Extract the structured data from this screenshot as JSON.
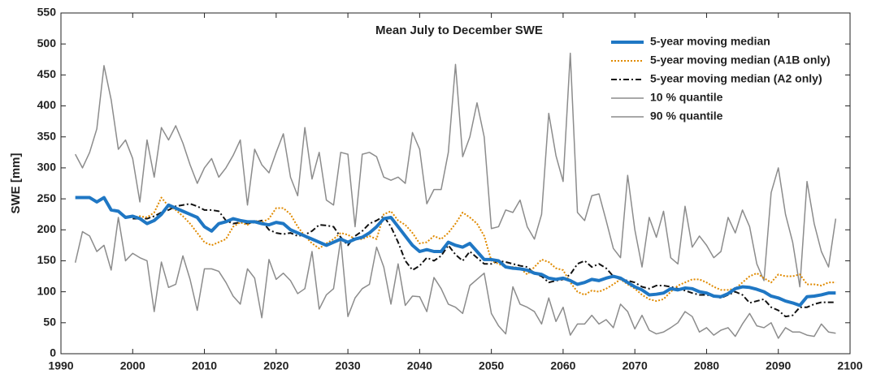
{
  "chart_data": {
    "type": "line",
    "title": "Mean July to December SWE",
    "ylabel": "SWE [mm]",
    "x": [
      1992,
      1993,
      1994,
      1995,
      1996,
      1997,
      1998,
      1999,
      2000,
      2001,
      2002,
      2003,
      2004,
      2005,
      2006,
      2007,
      2008,
      2009,
      2010,
      2011,
      2012,
      2013,
      2014,
      2015,
      2016,
      2017,
      2018,
      2019,
      2020,
      2021,
      2022,
      2023,
      2024,
      2025,
      2026,
      2027,
      2028,
      2029,
      2030,
      2031,
      2032,
      2033,
      2034,
      2035,
      2036,
      2037,
      2038,
      2039,
      2040,
      2041,
      2042,
      2043,
      2044,
      2045,
      2046,
      2047,
      2048,
      2049,
      2050,
      2051,
      2052,
      2053,
      2054,
      2055,
      2056,
      2057,
      2058,
      2059,
      2060,
      2061,
      2062,
      2063,
      2064,
      2065,
      2066,
      2067,
      2068,
      2069,
      2070,
      2071,
      2072,
      2073,
      2074,
      2075,
      2076,
      2077,
      2078,
      2079,
      2080,
      2081,
      2082,
      2083,
      2084,
      2085,
      2086,
      2087,
      2088,
      2089,
      2090,
      2091,
      2092,
      2093,
      2094,
      2095,
      2096,
      2097,
      2098
    ],
    "xlim": [
      1990,
      2100
    ],
    "xticks": [
      1990,
      2000,
      2010,
      2020,
      2030,
      2040,
      2050,
      2060,
      2070,
      2080,
      2090,
      2100
    ],
    "ylim": [
      0,
      550
    ],
    "yticks": [
      0,
      50,
      100,
      150,
      200,
      250,
      300,
      350,
      400,
      450,
      500,
      550
    ],
    "grid": false,
    "legend": "upper right",
    "series": [
      {
        "name": "5-year moving median",
        "color": "#1f77c4",
        "width": 4,
        "dash": "solid",
        "values": [
          252,
          252,
          252,
          245,
          252,
          232,
          230,
          220,
          222,
          218,
          210,
          215,
          225,
          240,
          235,
          230,
          225,
          220,
          205,
          198,
          210,
          213,
          218,
          215,
          213,
          213,
          210,
          208,
          212,
          210,
          200,
          195,
          190,
          185,
          180,
          175,
          180,
          185,
          180,
          185,
          188,
          195,
          205,
          218,
          220,
          205,
          190,
          175,
          165,
          168,
          165,
          165,
          180,
          175,
          172,
          178,
          165,
          152,
          152,
          150,
          140,
          138,
          137,
          135,
          130,
          128,
          122,
          120,
          122,
          118,
          112,
          115,
          120,
          118,
          122,
          125,
          122,
          115,
          108,
          103,
          95,
          96,
          98,
          105,
          103,
          106,
          105,
          100,
          98,
          93,
          92,
          97,
          105,
          108,
          107,
          104,
          100,
          93,
          90,
          85,
          82,
          78,
          92,
          93,
          95,
          98,
          98
        ]
      },
      {
        "name": "5-year moving median (A1B only)",
        "color": "#e08a00",
        "width": 2,
        "dash": "dotted",
        "values": [
          null,
          null,
          null,
          null,
          null,
          null,
          null,
          null,
          220,
          222,
          220,
          228,
          252,
          238,
          232,
          222,
          210,
          195,
          180,
          175,
          180,
          185,
          205,
          212,
          208,
          215,
          212,
          218,
          235,
          235,
          225,
          205,
          190,
          178,
          170,
          178,
          185,
          195,
          192,
          185,
          185,
          190,
          185,
          225,
          230,
          215,
          208,
          195,
          178,
          180,
          190,
          185,
          195,
          210,
          228,
          220,
          210,
          190,
          150,
          145,
          140,
          140,
          138,
          128,
          140,
          152,
          148,
          138,
          135,
          115,
          100,
          95,
          102,
          100,
          105,
          112,
          120,
          112,
          105,
          95,
          88,
          85,
          88,
          100,
          110,
          115,
          120,
          120,
          115,
          108,
          103,
          103,
          105,
          115,
          125,
          130,
          122,
          115,
          128,
          125,
          125,
          128,
          112,
          112,
          110,
          115,
          115
        ]
      },
      {
        "name": "5-year moving median (A2 only)",
        "color": "#111111",
        "width": 2,
        "dash": "dashdot",
        "values": [
          null,
          null,
          null,
          null,
          null,
          null,
          null,
          null,
          218,
          218,
          218,
          222,
          228,
          232,
          238,
          240,
          242,
          238,
          232,
          232,
          230,
          215,
          210,
          212,
          210,
          212,
          215,
          200,
          195,
          193,
          195,
          190,
          192,
          198,
          208,
          207,
          205,
          188,
          175,
          190,
          198,
          210,
          215,
          222,
          205,
          180,
          150,
          135,
          142,
          155,
          150,
          158,
          175,
          160,
          150,
          165,
          155,
          145,
          145,
          150,
          148,
          145,
          142,
          140,
          130,
          125,
          115,
          118,
          120,
          128,
          145,
          150,
          140,
          145,
          138,
          125,
          120,
          118,
          115,
          108,
          105,
          110,
          110,
          108,
          105,
          102,
          98,
          95,
          95,
          93,
          90,
          95,
          100,
          95,
          82,
          85,
          88,
          75,
          70,
          60,
          62,
          75,
          75,
          80,
          83,
          83,
          83
        ]
      },
      {
        "name": "10 % quantile",
        "color": "#8c8c8c",
        "width": 1.5,
        "dash": "solid",
        "values": [
          147,
          197,
          190,
          165,
          175,
          135,
          220,
          150,
          162,
          155,
          150,
          68,
          148,
          107,
          112,
          158,
          120,
          70,
          137,
          137,
          133,
          115,
          93,
          80,
          137,
          122,
          58,
          152,
          120,
          130,
          118,
          97,
          105,
          165,
          72,
          95,
          105,
          185,
          60,
          90,
          105,
          112,
          172,
          140,
          80,
          145,
          78,
          93,
          92,
          68,
          123,
          105,
          80,
          75,
          65,
          110,
          120,
          130,
          65,
          45,
          32,
          108,
          80,
          75,
          68,
          48,
          90,
          52,
          75,
          30,
          48,
          48,
          62,
          48,
          55,
          42,
          80,
          68,
          40,
          62,
          38,
          32,
          35,
          42,
          50,
          68,
          60,
          35,
          42,
          30,
          38,
          42,
          28,
          48,
          65,
          45,
          42,
          50,
          25,
          42,
          35,
          35,
          30,
          28,
          48,
          35,
          33
        ]
      },
      {
        "name": "90 % quantile",
        "color": "#8c8c8c",
        "width": 1.5,
        "dash": "solid",
        "values": [
          322,
          300,
          325,
          363,
          465,
          410,
          330,
          345,
          315,
          245,
          345,
          285,
          365,
          345,
          368,
          340,
          305,
          275,
          300,
          315,
          285,
          300,
          320,
          345,
          240,
          330,
          305,
          292,
          325,
          355,
          285,
          255,
          365,
          282,
          325,
          248,
          240,
          325,
          322,
          205,
          322,
          325,
          318,
          285,
          280,
          285,
          275,
          357,
          330,
          242,
          265,
          265,
          325,
          467,
          318,
          350,
          405,
          350,
          202,
          205,
          232,
          228,
          248,
          205,
          185,
          225,
          388,
          320,
          278,
          485,
          228,
          215,
          255,
          258,
          215,
          170,
          155,
          288,
          200,
          140,
          220,
          188,
          230,
          155,
          145,
          238,
          172,
          190,
          175,
          155,
          165,
          220,
          195,
          232,
          205,
          145,
          118,
          260,
          300,
          225,
          180,
          108,
          278,
          210,
          165,
          140,
          218
        ]
      }
    ]
  }
}
